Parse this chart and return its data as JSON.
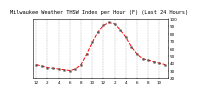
{
  "title": "Milwaukee Weather THSW Index per Hour (F) (Last 24 Hours)",
  "hours": [
    0,
    1,
    2,
    3,
    4,
    5,
    6,
    7,
    8,
    9,
    10,
    11,
    12,
    13,
    14,
    15,
    16,
    17,
    18,
    19,
    20,
    21,
    22,
    23
  ],
  "values": [
    38,
    36,
    34,
    33,
    32,
    31,
    30,
    32,
    38,
    52,
    68,
    82,
    91,
    95,
    93,
    85,
    75,
    62,
    52,
    46,
    44,
    42,
    40,
    38
  ],
  "line_color": "#ff0000",
  "marker_color": "#555555",
  "bg_color": "#ffffff",
  "plot_bg": "#ffffff",
  "grid_color": "#bbbbbb",
  "ylim_min": 20,
  "ylim_max": 100,
  "ytick_values": [
    20,
    30,
    40,
    50,
    60,
    70,
    80,
    90,
    100
  ],
  "xlabel_ticks": [
    0,
    2,
    4,
    6,
    8,
    10,
    12,
    14,
    16,
    18,
    20,
    22
  ],
  "xlabel_labels": [
    "12",
    "2",
    "4",
    "6",
    "8",
    "10",
    "12",
    "2",
    "4",
    "6",
    "8",
    "10"
  ],
  "title_fontsize": 3.8,
  "tick_fontsize": 3.0
}
